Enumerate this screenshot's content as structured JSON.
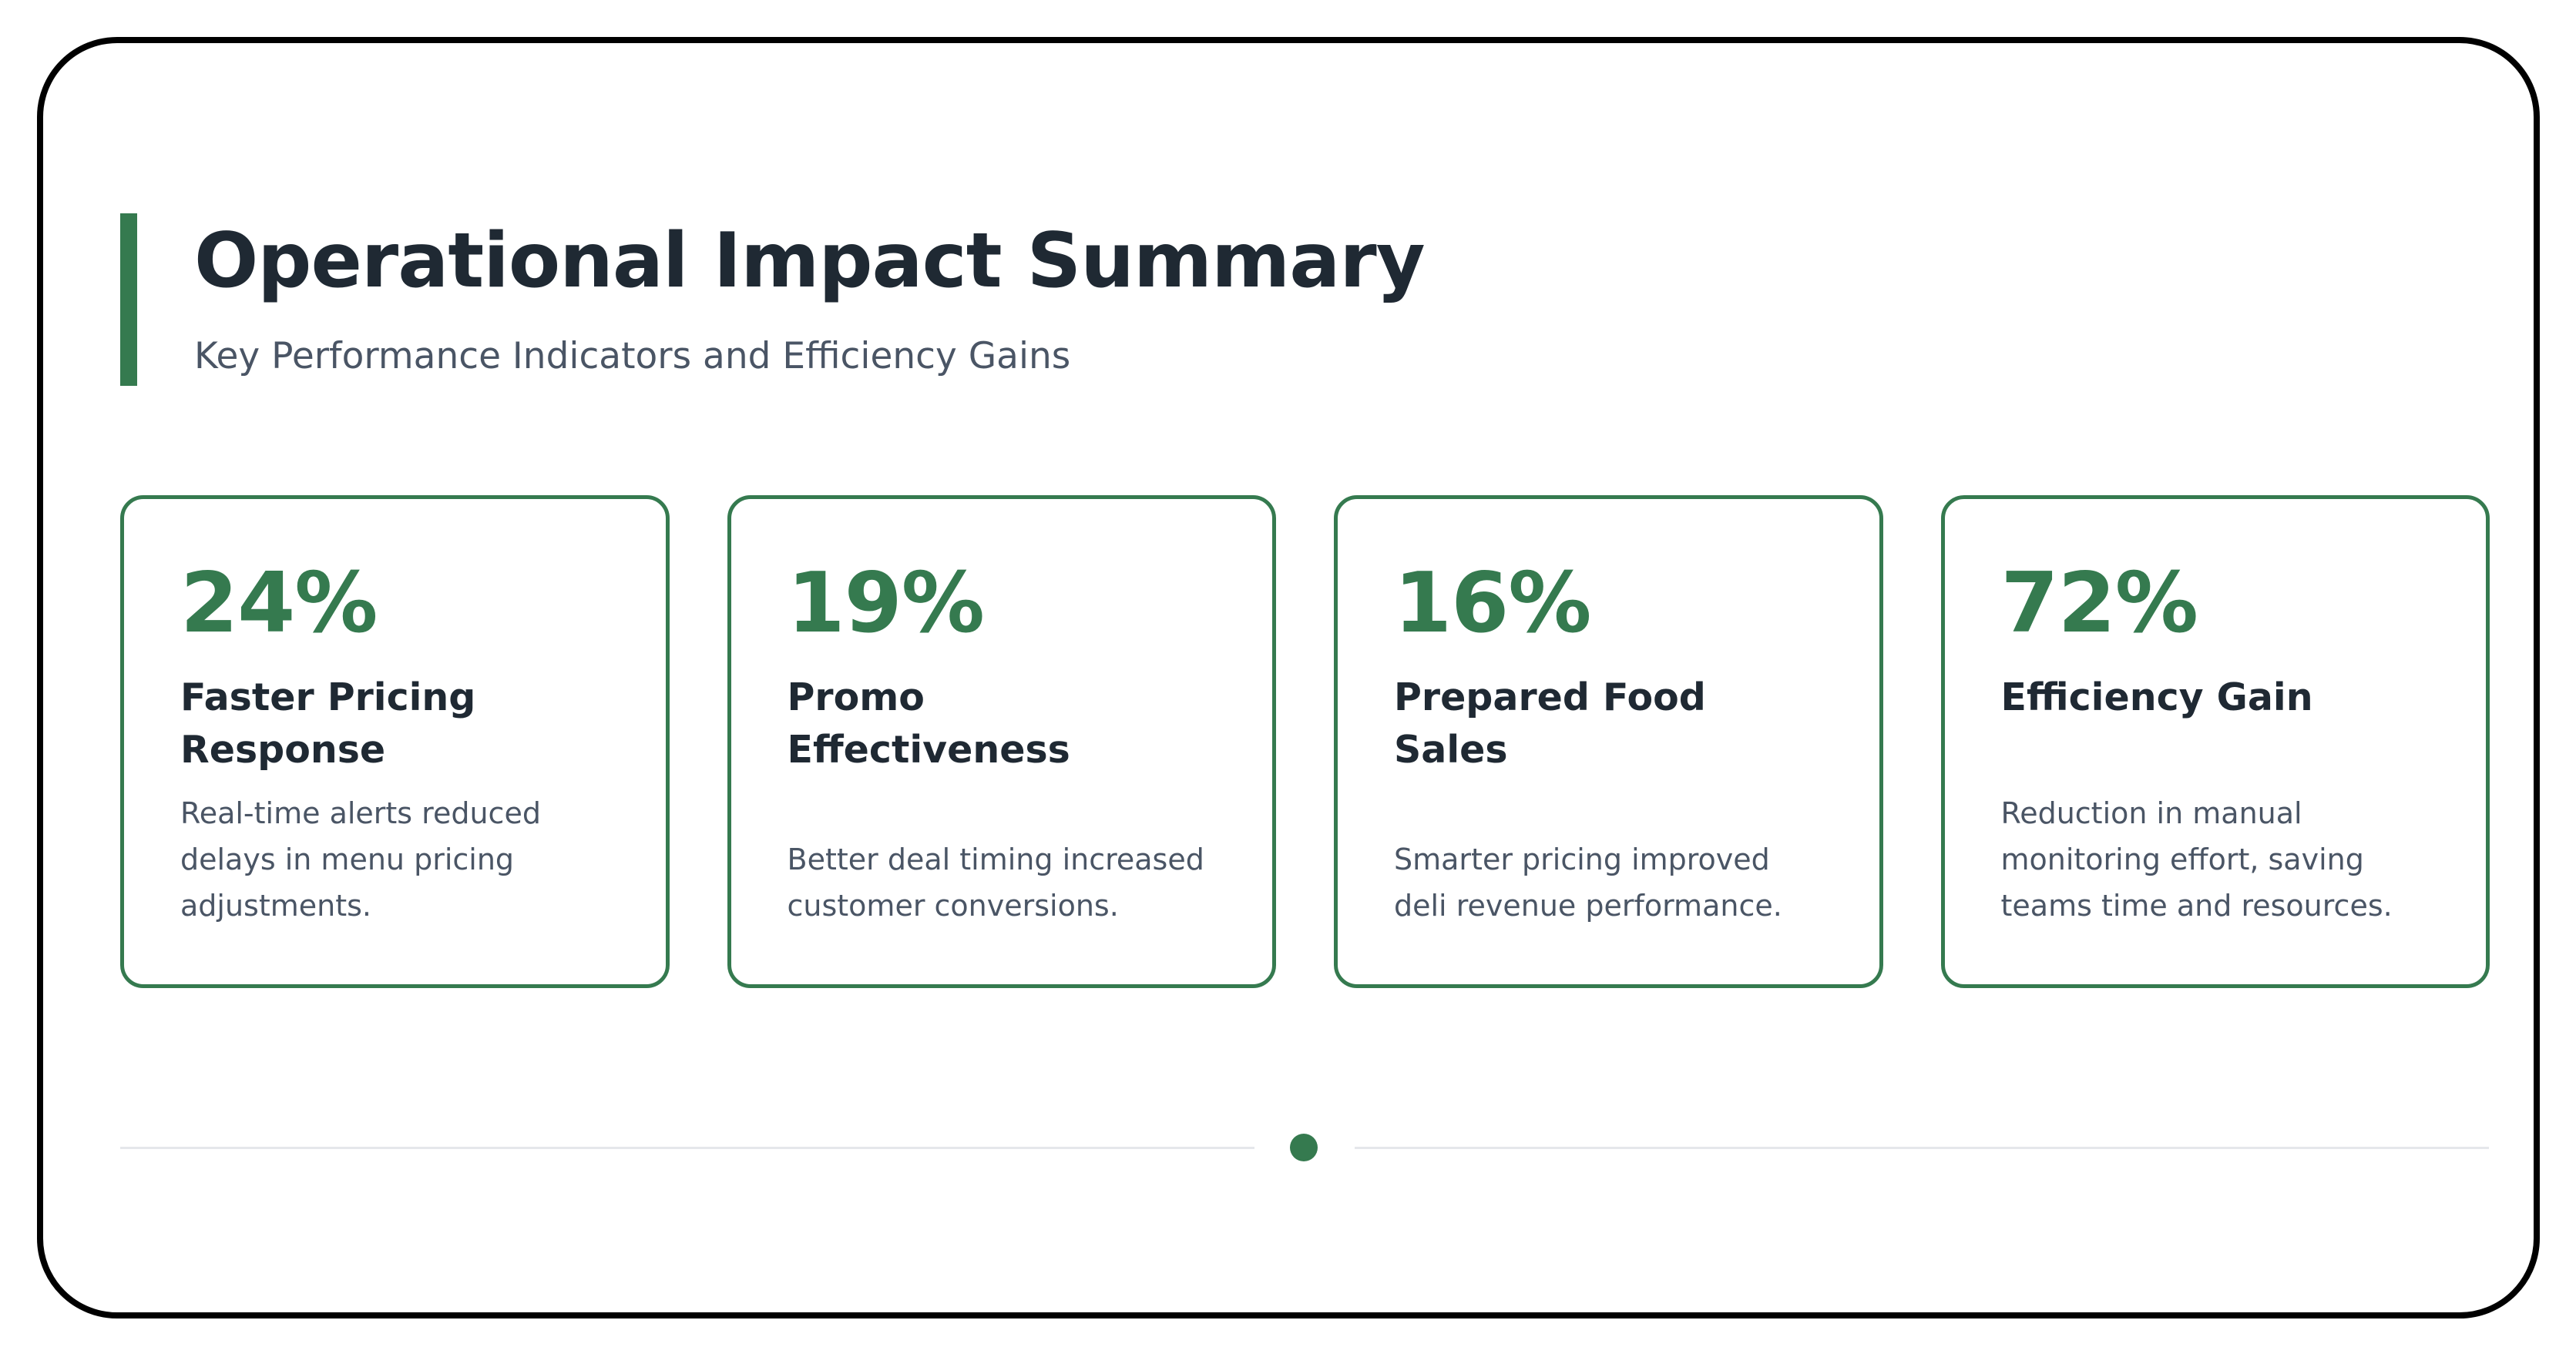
{
  "header": {
    "title": "Operational Impact Summary",
    "subtitle": "Key Performance Indicators and Efficiency Gains"
  },
  "cards": [
    {
      "value": "24%",
      "heading": "Faster Pricing Response",
      "description": "Real-time alerts reduced delays in menu pricing adjustments."
    },
    {
      "value": "19%",
      "heading": "Promo Effectiveness",
      "description": "Better deal timing increased customer conversions."
    },
    {
      "value": "16%",
      "heading": "Prepared Food Sales",
      "description": "Smarter pricing improved deli revenue performance."
    },
    {
      "value": "72%",
      "heading": "Efficiency Gain",
      "description": "Reduction in manual monitoring effort, saving teams time and resources."
    }
  ],
  "pagination": {
    "active_index": 0,
    "total": 1
  },
  "colors": {
    "accent": "#357a4f",
    "title": "#1f2933",
    "body_text": "#4a5565",
    "divider": "#e5e7eb",
    "frame": "#000000"
  }
}
